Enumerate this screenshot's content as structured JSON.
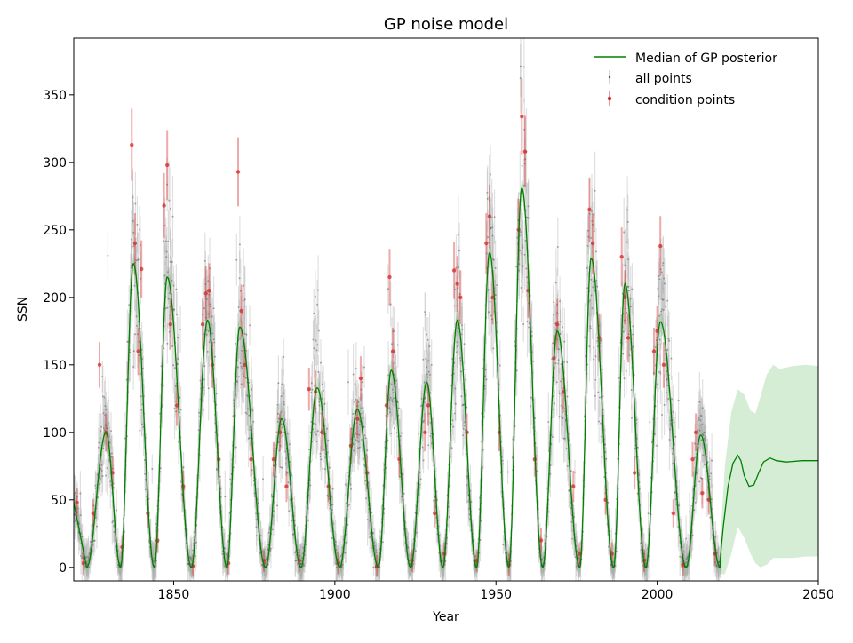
{
  "chart_data": {
    "type": "line",
    "title": "GP noise model",
    "xlabel": "Year",
    "ylabel": "SSN",
    "xlim": [
      1819,
      2050
    ],
    "ylim": [
      -10,
      392
    ],
    "grid": false,
    "legend_placement": "top-right",
    "x_ticks": [
      1850,
      1900,
      1950,
      2000,
      2050
    ],
    "y_ticks": [
      0,
      50,
      100,
      150,
      200,
      250,
      300,
      350
    ],
    "legend": [
      {
        "label": "Median of GP posterior",
        "kind": "line",
        "color": "#008000"
      },
      {
        "label": "all points",
        "kind": "errorbar",
        "color": "#808080"
      },
      {
        "label": "condition points",
        "kind": "errorbar",
        "color": "#d62728"
      }
    ],
    "cycles": [
      {
        "min_year": 1823.0,
        "max_year": 1829.0,
        "peak": 100
      },
      {
        "min_year": 1833.5,
        "max_year": 1837.5,
        "peak": 225
      },
      {
        "min_year": 1844.0,
        "max_year": 1848.0,
        "peak": 215
      },
      {
        "min_year": 1855.5,
        "max_year": 1860.5,
        "peak": 183
      },
      {
        "min_year": 1866.5,
        "max_year": 1870.5,
        "peak": 178
      },
      {
        "min_year": 1878.5,
        "max_year": 1883.5,
        "peak": 110
      },
      {
        "min_year": 1889.5,
        "max_year": 1894.5,
        "peak": 133
      },
      {
        "min_year": 1901.5,
        "max_year": 1907.0,
        "peak": 117
      },
      {
        "min_year": 1913.5,
        "max_year": 1917.5,
        "peak": 146
      },
      {
        "min_year": 1923.5,
        "max_year": 1928.5,
        "peak": 137
      },
      {
        "min_year": 1933.5,
        "max_year": 1938.0,
        "peak": 183
      },
      {
        "min_year": 1944.0,
        "max_year": 1948.0,
        "peak": 233
      },
      {
        "min_year": 1954.0,
        "max_year": 1958.0,
        "peak": 281
      },
      {
        "min_year": 1964.5,
        "max_year": 1969.0,
        "peak": 175
      },
      {
        "min_year": 1976.0,
        "max_year": 1979.5,
        "peak": 229
      },
      {
        "min_year": 1986.5,
        "max_year": 1990.0,
        "peak": 210
      },
      {
        "min_year": 1996.5,
        "max_year": 2001.0,
        "peak": 182
      },
      {
        "min_year": 2009.0,
        "max_year": 2013.5,
        "peak": 98
      },
      {
        "min_year": 2019.5,
        "max_year": 2019.5,
        "peak": 0
      }
    ],
    "series": [
      {
        "name": "Median of GP posterior",
        "forecast_x": [
          2019.5,
          2020.5,
          2022,
          2023.5,
          2025,
          2026,
          2027,
          2028.5,
          2030,
          2031.5,
          2033,
          2035,
          2037,
          2040,
          2045,
          2050
        ],
        "forecast_y": [
          5,
          30,
          60,
          77,
          83,
          79,
          68,
          60,
          61,
          70,
          78,
          81,
          79,
          78,
          79,
          79
        ]
      }
    ],
    "uncertainty_band": {
      "x": [
        2019.5,
        2021,
        2023,
        2025,
        2027,
        2029,
        2030.5,
        2032,
        2034,
        2036,
        2038,
        2042,
        2046,
        2050
      ],
      "upper": [
        15,
        75,
        115,
        132,
        128,
        116,
        114,
        126,
        143,
        150,
        147,
        149,
        150,
        149
      ],
      "lower": [
        -5,
        -5,
        10,
        30,
        22,
        10,
        3,
        0,
        2,
        7,
        7,
        7,
        8,
        8
      ]
    },
    "condition_points": [
      [
        1820,
        48
      ],
      [
        1822,
        3
      ],
      [
        1825,
        40
      ],
      [
        1827,
        150
      ],
      [
        1829,
        100
      ],
      [
        1831,
        70
      ],
      [
        1834,
        15
      ],
      [
        1837,
        313
      ],
      [
        1838,
        240
      ],
      [
        1839,
        160
      ],
      [
        1840,
        221
      ],
      [
        1842,
        40
      ],
      [
        1845,
        20
      ],
      [
        1847,
        268
      ],
      [
        1848,
        298
      ],
      [
        1849,
        180
      ],
      [
        1851,
        120
      ],
      [
        1853,
        60
      ],
      [
        1856,
        1
      ],
      [
        1859,
        180
      ],
      [
        1860,
        203
      ],
      [
        1861,
        205
      ],
      [
        1862,
        150
      ],
      [
        1864,
        80
      ],
      [
        1867,
        3
      ],
      [
        1870,
        293
      ],
      [
        1871,
        190
      ],
      [
        1872,
        150
      ],
      [
        1874,
        80
      ],
      [
        1878,
        5
      ],
      [
        1881,
        80
      ],
      [
        1883,
        100
      ],
      [
        1885,
        60
      ],
      [
        1889,
        5
      ],
      [
        1892,
        132
      ],
      [
        1894,
        130
      ],
      [
        1896,
        100
      ],
      [
        1898,
        60
      ],
      [
        1901,
        3
      ],
      [
        1905,
        90
      ],
      [
        1907,
        110
      ],
      [
        1908,
        140
      ],
      [
        1910,
        70
      ],
      [
        1913,
        1
      ],
      [
        1916,
        120
      ],
      [
        1917,
        215
      ],
      [
        1918,
        160
      ],
      [
        1920,
        80
      ],
      [
        1924,
        5
      ],
      [
        1928,
        100
      ],
      [
        1929,
        120
      ],
      [
        1931,
        40
      ],
      [
        1934,
        10
      ],
      [
        1937,
        220
      ],
      [
        1938,
        210
      ],
      [
        1939,
        200
      ],
      [
        1941,
        100
      ],
      [
        1944,
        5
      ],
      [
        1947,
        240
      ],
      [
        1948,
        260
      ],
      [
        1949,
        200
      ],
      [
        1951,
        100
      ],
      [
        1954,
        2
      ],
      [
        1957,
        250
      ],
      [
        1958,
        334
      ],
      [
        1959,
        308
      ],
      [
        1960,
        205
      ],
      [
        1962,
        80
      ],
      [
        1964,
        20
      ],
      [
        1968,
        155
      ],
      [
        1969,
        180
      ],
      [
        1971,
        130
      ],
      [
        1974,
        60
      ],
      [
        1976,
        10
      ],
      [
        1979,
        265
      ],
      [
        1980,
        240
      ],
      [
        1982,
        170
      ],
      [
        1984,
        50
      ],
      [
        1986,
        10
      ],
      [
        1989,
        230
      ],
      [
        1990,
        200
      ],
      [
        1991,
        170
      ],
      [
        1993,
        70
      ],
      [
        1996,
        5
      ],
      [
        1999,
        160
      ],
      [
        2000,
        175
      ],
      [
        2001,
        238
      ],
      [
        2002,
        150
      ],
      [
        2005,
        40
      ],
      [
        2008,
        2
      ],
      [
        2011,
        80
      ],
      [
        2012,
        100
      ],
      [
        2014,
        55
      ],
      [
        2016,
        50
      ],
      [
        2018,
        10
      ]
    ]
  }
}
